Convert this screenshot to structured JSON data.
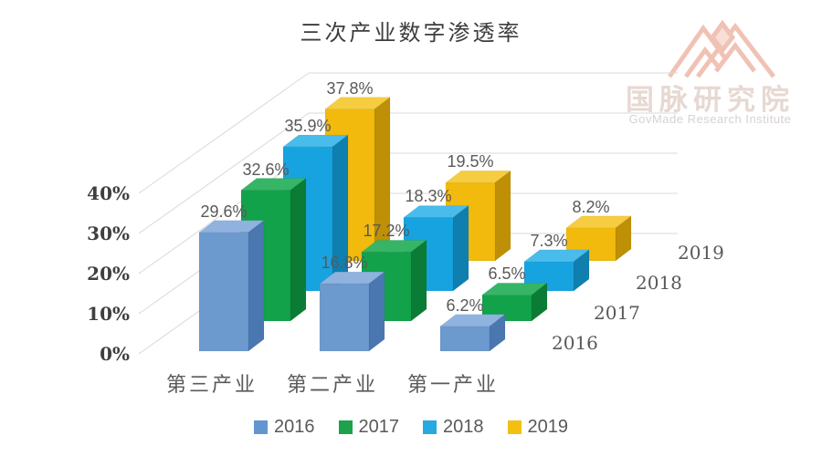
{
  "page": {
    "background": "#ffffff"
  },
  "title": "三次产业数字渗透率",
  "watermark": {
    "logo_icon": "govmade-mountain-monogram",
    "logo_color": "#ecae9d",
    "org_name": "国脉研究院",
    "org_subtitle": "GovMade Research Institute"
  },
  "chart_data": {
    "type": "bar",
    "variant": "3d-column",
    "title": "三次产业数字渗透率",
    "categories": [
      "第三产业",
      "第二产业",
      "第一产业"
    ],
    "series": [
      {
        "name": "2016",
        "values": [
          29.6,
          16.8,
          6.2
        ],
        "labels": [
          "29.6%",
          "16.8%",
          "6.2%"
        ],
        "colors": {
          "legend": "#6396cf",
          "front": "#6c99ce",
          "side": "#4a77b0",
          "top": "#8fb2df"
        }
      },
      {
        "name": "2017",
        "values": [
          32.6,
          17.2,
          6.5
        ],
        "labels": [
          "32.6%",
          "17.2%",
          "6.5%"
        ],
        "colors": {
          "legend": "#1ca24b",
          "front": "#12a24a",
          "side": "#0b7c36",
          "top": "#36b567"
        }
      },
      {
        "name": "2018",
        "values": [
          35.9,
          18.3,
          7.3
        ],
        "labels": [
          "35.9%",
          "18.3%",
          "7.3%"
        ],
        "colors": {
          "legend": "#27a9e1",
          "front": "#17a3df",
          "side": "#0f7faf",
          "top": "#49bceb"
        }
      },
      {
        "name": "2019",
        "values": [
          37.8,
          19.5,
          8.2
        ],
        "labels": [
          "37.8%",
          "19.5%",
          "8.2%"
        ],
        "colors": {
          "legend": "#f3c011",
          "front": "#f1ba0c",
          "side": "#bf9005",
          "top": "#f6cc41"
        }
      }
    ],
    "value_axis": {
      "ticks": [
        {
          "label": "0%",
          "value": 0
        },
        {
          "label": "10%",
          "value": 10
        },
        {
          "label": "20%",
          "value": 20
        },
        {
          "label": "30%",
          "value": 30
        },
        {
          "label": "40%",
          "value": 40
        }
      ],
      "max": 40
    },
    "depth_axis": {
      "labels": [
        "2016",
        "2017",
        "2018",
        "2019"
      ]
    },
    "legend": {
      "position": "bottom",
      "entries": [
        "2016",
        "2017",
        "2018",
        "2019"
      ]
    },
    "grid": true,
    "gridline_color": "#d9d9d9"
  }
}
